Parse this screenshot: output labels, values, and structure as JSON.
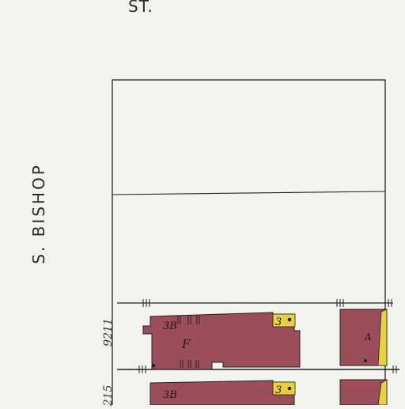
{
  "street_top": "ST.",
  "street_side": "S. BISHOP",
  "address_1": "9211",
  "address_2": "215",
  "building_1": {
    "stories": "3B",
    "type": "F",
    "tag": "3"
  },
  "building_2": {
    "stories": "3B",
    "tag": "3"
  },
  "building_3": {
    "type": "A"
  },
  "colors": {
    "paper": "#f3f3ee",
    "brick": "#9a4d5a",
    "yellow": "#e6d23c",
    "line": "#222222"
  }
}
